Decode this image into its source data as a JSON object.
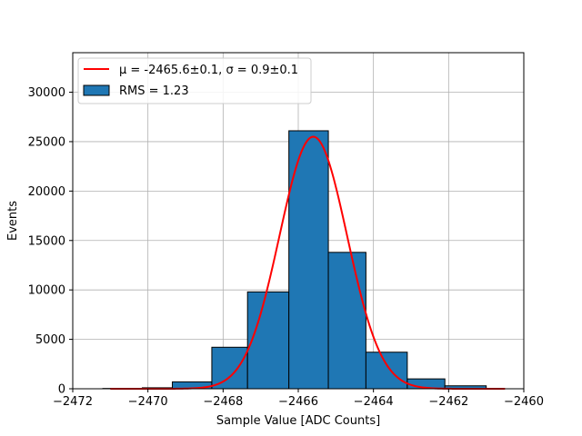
{
  "chart_data": {
    "type": "bar",
    "xlabel": "Sample Value [ADC Counts]",
    "ylabel": "Events",
    "xlim": [
      -2472,
      -2460
    ],
    "ylim": [
      0,
      34000
    ],
    "xticks": [
      -2472,
      -2470,
      -2468,
      -2466,
      -2464,
      -2462,
      -2460
    ],
    "xtick_labels": [
      "−2472",
      "−2470",
      "−2468",
      "−2466",
      "−2464",
      "−2462",
      "−2460"
    ],
    "yticks": [
      0,
      5000,
      10000,
      15000,
      20000,
      25000,
      30000
    ],
    "ytick_labels": [
      "0",
      "5000",
      "10000",
      "15000",
      "20000",
      "25000",
      "30000"
    ],
    "grid": true,
    "legend_position": "top-left",
    "histogram": {
      "name": "RMS = 1.23",
      "color": "#1f77b4",
      "edgecolor": "#000000",
      "bin_edges": [
        -2471.2,
        -2470.15,
        -2469.35,
        -2468.3,
        -2467.35,
        -2466.25,
        -2465.2,
        -2464.2,
        -2463.1,
        -2462.1,
        -2461.0
      ],
      "counts": [
        30,
        100,
        700,
        4200,
        9800,
        26100,
        13800,
        3700,
        1000,
        300
      ]
    },
    "fit": {
      "name_prefix": "μ = -2465.6±0.1, σ = 0.9±0.1",
      "color": "#ff0000",
      "mu": -2465.6,
      "sigma": 0.9,
      "amplitude": 25500,
      "x_range": [
        -2471.0,
        -2460.5
      ]
    }
  }
}
